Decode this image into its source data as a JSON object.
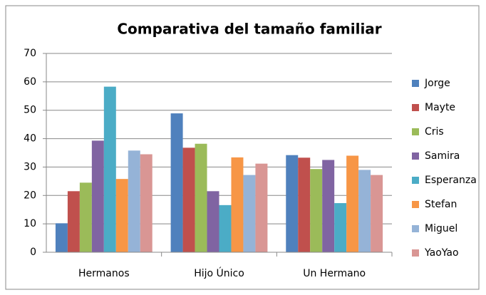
{
  "chart_data": {
    "type": "bar",
    "title": "Comparativa del tamaño familiar",
    "categories": [
      "Hermanos",
      "Hijo Único",
      "Un Hermano"
    ],
    "series": [
      {
        "name": "Jorge",
        "color": "#4f81bd",
        "values": [
          10.2,
          48.9,
          34.2
        ]
      },
      {
        "name": "Mayte",
        "color": "#c0504d",
        "values": [
          21.5,
          36.8,
          33.3
        ]
      },
      {
        "name": "Cris",
        "color": "#9bbb59",
        "values": [
          24.5,
          38.2,
          29.3
        ]
      },
      {
        "name": "Samira",
        "color": "#8064a2",
        "values": [
          39.3,
          21.5,
          32.5
        ]
      },
      {
        "name": "Esperanza",
        "color": "#4bacc6",
        "values": [
          58.3,
          16.6,
          17.3
        ]
      },
      {
        "name": "Stefan",
        "color": "#f79646",
        "values": [
          25.8,
          33.4,
          34.0
        ]
      },
      {
        "name": "Miguel",
        "color": "#95b3d7",
        "values": [
          35.8,
          27.2,
          29.0
        ]
      },
      {
        "name": "YaoYao",
        "color": "#d99694",
        "values": [
          34.5,
          31.2,
          27.2
        ]
      }
    ],
    "ylim": [
      0,
      70
    ],
    "yticks": [
      0,
      10,
      20,
      30,
      40,
      50,
      60,
      70
    ],
    "grid": true,
    "legend": "right"
  }
}
